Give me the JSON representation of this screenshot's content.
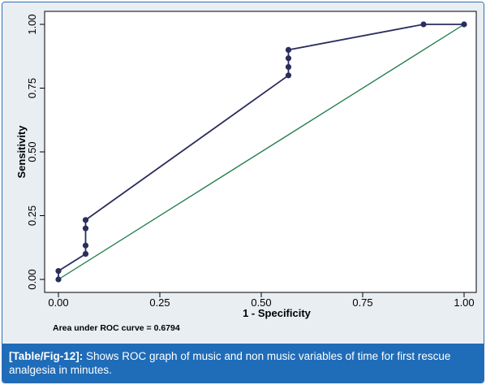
{
  "chart_data": {
    "type": "line",
    "xlabel": "1 - Specificity",
    "ylabel": "Sensitivity",
    "xlim": [
      0,
      1
    ],
    "ylim": [
      0,
      1
    ],
    "x_ticks": [
      "0.00",
      "0.25",
      "0.50",
      "0.75",
      "1.00"
    ],
    "y_ticks": [
      "0.00",
      "0.25",
      "0.50",
      "0.75",
      "1.00"
    ],
    "grid": false,
    "series": [
      {
        "color": "#2b2d5c",
        "markers": true,
        "points": [
          {
            "x": 0.0,
            "y": 0.0
          },
          {
            "x": 0.0,
            "y": 0.033
          },
          {
            "x": 0.067,
            "y": 0.1
          },
          {
            "x": 0.067,
            "y": 0.133
          },
          {
            "x": 0.067,
            "y": 0.2
          },
          {
            "x": 0.067,
            "y": 0.233
          },
          {
            "x": 0.567,
            "y": 0.8
          },
          {
            "x": 0.567,
            "y": 0.833
          },
          {
            "x": 0.567,
            "y": 0.867
          },
          {
            "x": 0.567,
            "y": 0.9
          },
          {
            "x": 0.9,
            "y": 1.0
          },
          {
            "x": 1.0,
            "y": 1.0
          }
        ]
      },
      {
        "color": "#1f7a4a",
        "markers": false,
        "points": [
          {
            "x": 0.0,
            "y": 0.0
          },
          {
            "x": 1.0,
            "y": 1.0
          }
        ]
      }
    ],
    "annotation": "Area under ROC curve = 0.6794"
  },
  "caption": {
    "label": "[Table/Fig-12]:",
    "text": " Shows ROC graph of music and non music variables of time for first rescue analgesia in minutes."
  }
}
